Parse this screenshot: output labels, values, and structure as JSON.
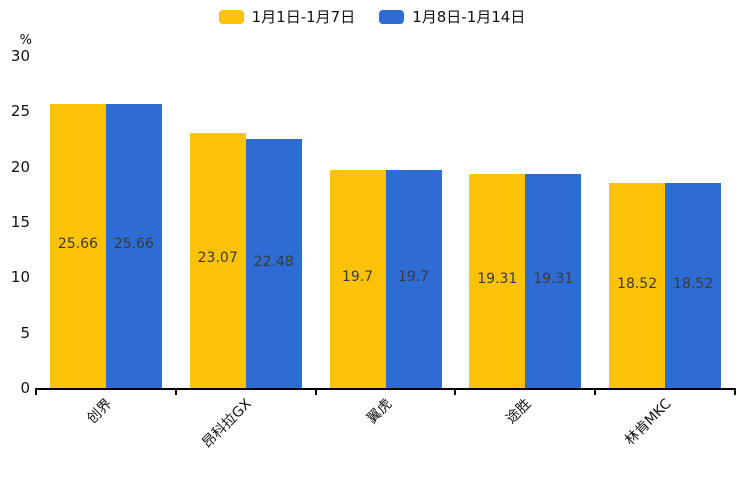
{
  "page": {
    "background": "#ffffff",
    "axis_color": "#000000",
    "text_color": "#111111"
  },
  "legend": {
    "position": "top-center",
    "items": [
      {
        "label": "1月1日-1月7日",
        "color": "#FCC306"
      },
      {
        "label": "1月8日-1月14日",
        "color": "#2E6BD2"
      }
    ]
  },
  "chart_data": {
    "type": "bar",
    "title": "",
    "xlabel": "",
    "ylabel": "%",
    "ylim": [
      0,
      30
    ],
    "y_ticks": [
      0,
      5,
      10,
      15,
      20,
      25,
      30
    ],
    "grid": false,
    "legend_position": "top-center",
    "categories": [
      "创界",
      "昂科拉GX",
      "翼虎",
      "途胜",
      "林肯MKC"
    ],
    "series": [
      {
        "name": "1月1日-1月7日",
        "color": "#FCC306",
        "values": [
          25.66,
          23.07,
          19.7,
          19.31,
          18.52
        ]
      },
      {
        "name": "1月8日-1月14日",
        "color": "#2E6BD2",
        "values": [
          25.66,
          22.48,
          19.7,
          19.31,
          18.52
        ]
      }
    ],
    "value_labels": [
      [
        "25.66",
        "23.07",
        "19.7",
        "19.31",
        "18.52"
      ],
      [
        "25.66",
        "22.48",
        "19.7",
        "19.31",
        "18.52"
      ]
    ],
    "value_label_color": "#3a3a3a"
  }
}
